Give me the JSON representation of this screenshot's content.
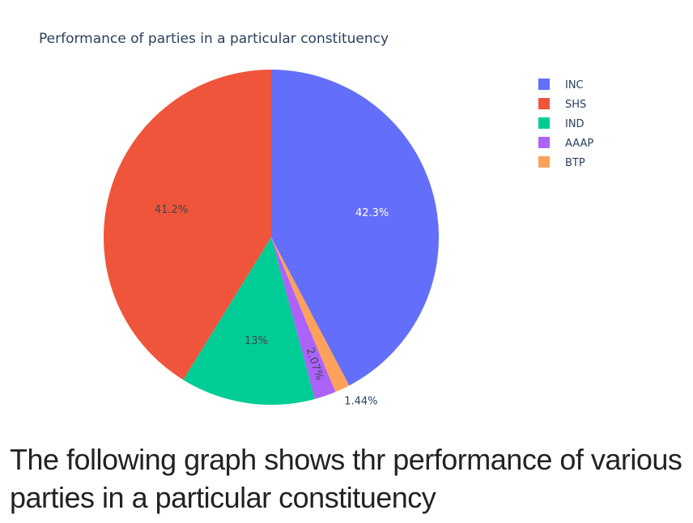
{
  "chart_data": {
    "type": "pie",
    "title": "Performance of parties in a particular constituency",
    "slices": [
      {
        "label": "INC",
        "value": 42.3,
        "display": "42.3%",
        "color": "#636efa"
      },
      {
        "label": "BTP",
        "value": 1.44,
        "display": "1.44%",
        "color": "#ffa15a"
      },
      {
        "label": "AAAP",
        "value": 2.07,
        "display": "2.07%",
        "color": "#ab63fa"
      },
      {
        "label": "IND",
        "value": 13,
        "display": "13%",
        "color": "#00cc96"
      },
      {
        "label": "SHS",
        "value": 41.2,
        "display": "41.2%",
        "color": "#ef553b"
      }
    ],
    "legend": {
      "placement": "top-right",
      "order": [
        "INC",
        "SHS",
        "IND",
        "AAAP",
        "BTP"
      ]
    }
  },
  "caption": "The following graph shows thr performance of various parties in a particular constituency"
}
